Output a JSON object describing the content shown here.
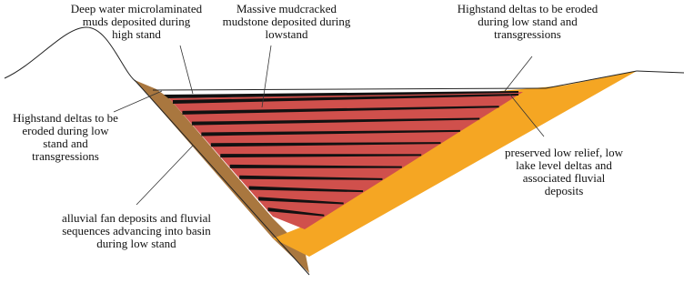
{
  "labels": [
    {
      "lines": [
        "Deep water microlaminated",
        "muds deposited during",
        "high stand"
      ]
    },
    {
      "lines": [
        "Massive mudcracked",
        "mudstone deposited during",
        "lowstand"
      ]
    },
    {
      "lines": [
        "Highstand deltas to be eroded",
        "during low stand and",
        "transgressions"
      ]
    },
    {
      "lines": [
        "Highstand deltas to be",
        "eroded during low",
        "stand and",
        "transgressions"
      ]
    },
    {
      "lines": [
        "preserved low relief, low",
        "lake level deltas and",
        "associated fluvial",
        "deposits"
      ]
    },
    {
      "lines": [
        "alluvial fan deposits and fluvial",
        "sequences advancing  into basin",
        "during low stand"
      ]
    }
  ]
}
